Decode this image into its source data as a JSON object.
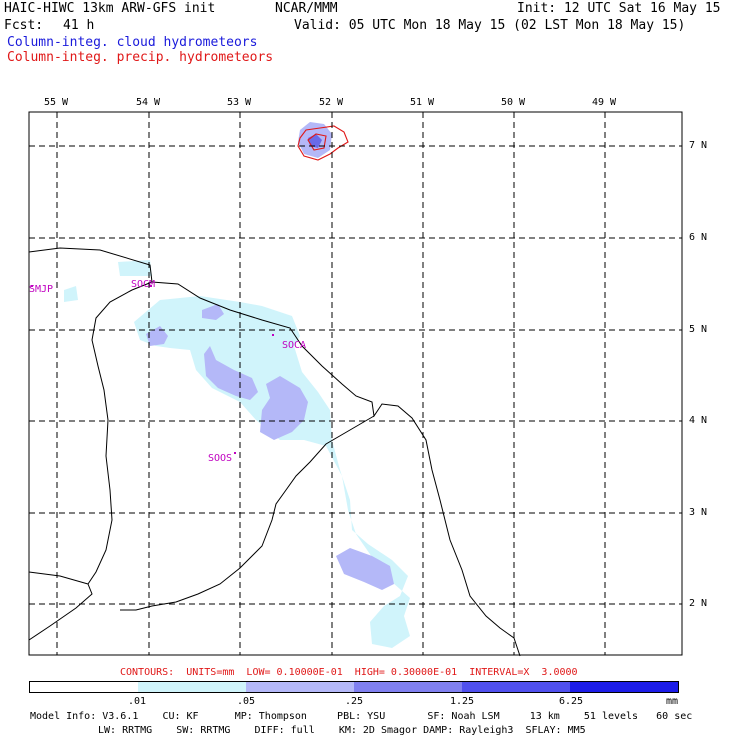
{
  "header": {
    "model_title": "HAIC-HIWC 13km ARW-GFS init",
    "org": "NCAR/MMM",
    "init_label": "Init: 12 UTC Sat 16 May 15",
    "fcst_label": "Fcst:",
    "fcst_value": "41 h",
    "valid_label": "Valid: 05 UTC Mon 18 May 15 (02 LST Mon 18 May 15)",
    "field_cloud": "Column-integ. cloud hydrometeors",
    "field_precip": "Column-integ. precip. hydrometeors"
  },
  "map": {
    "lon_ticks": [
      "55 W",
      "54 W",
      "53 W",
      "52 W",
      "51 W",
      "50 W",
      "49 W"
    ],
    "lat_ticks": [
      "7 N",
      "6 N",
      "5 N",
      "4 N",
      "3 N",
      "2 N"
    ],
    "stations": [
      "SMJP",
      "SOCM",
      "SOCA",
      "SOOS"
    ],
    "colors": {
      "cloud_fill": [
        "#ffffff",
        "#d0f4fb",
        "#b4b8f8",
        "#8080f0",
        "#5050ee",
        "#1c1ce8"
      ],
      "precip_contour": "#e01818",
      "coast": "#000000",
      "grid": "#000000",
      "station_label": "#c000c0"
    }
  },
  "contours_line": "CONTOURS:  UNITS=mm  LOW= 0.10000E-01  HIGH= 0.30000E-01  INTERVAL=X  3.0000",
  "colorbar": {
    "labels": [
      ".01",
      ".05",
      ".25",
      "1.25",
      "6.25"
    ],
    "units": "mm",
    "colors": [
      "#ffffff",
      "#d0f4fb",
      "#b4b8f8",
      "#8080f0",
      "#5050ee",
      "#1c1ce8"
    ]
  },
  "footer": {
    "line1": "Model Info: V3.6.1    CU: KF      MP: Thompson     PBL: YSU       SF: Noah LSM     13 km    51 levels   60 sec",
    "line2": "LW: RRTMG    SW: RRTMG    DIFF: full    KM: 2D Smagor DAMP: Rayleigh3  SFLAY: MM5"
  }
}
